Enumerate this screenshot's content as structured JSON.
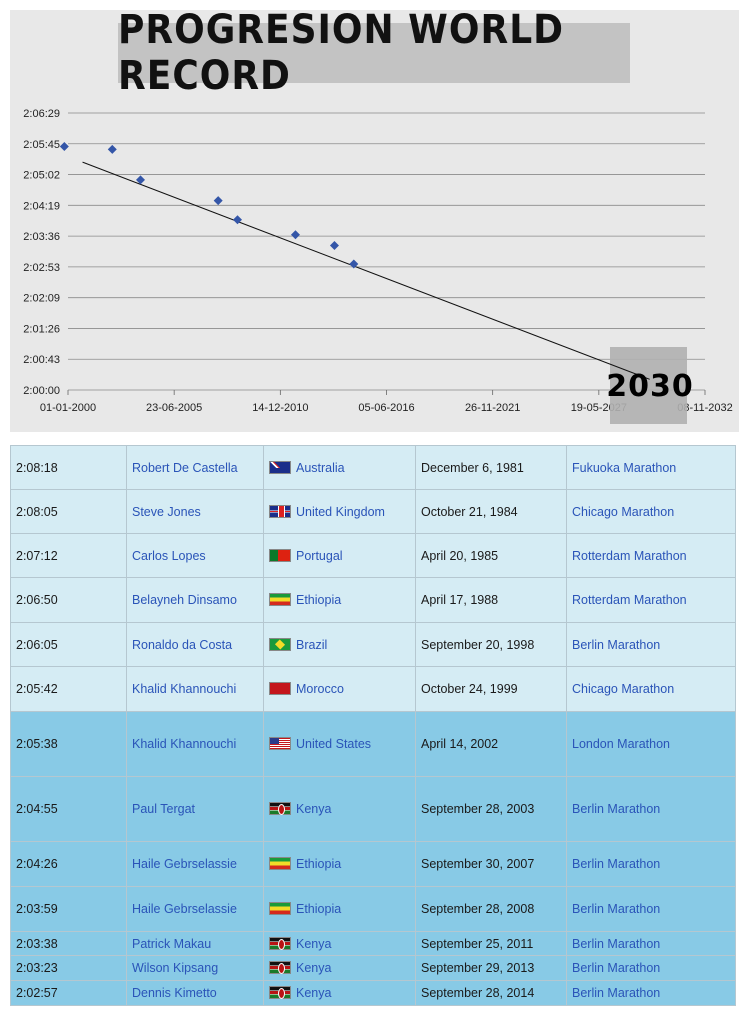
{
  "chart_data": {
    "type": "scatter",
    "title": "PROGRESION WORLD RECORD",
    "x_tick_labels": [
      "01-01-2000",
      "23-06-2005",
      "14-12-2010",
      "05-06-2016",
      "26-11-2021",
      "19-05-2027",
      "08-11-2032"
    ],
    "x_range": [
      "2000-01-01",
      "2032-11-08"
    ],
    "y_tick_labels": [
      "2:00:00",
      "2:00:43",
      "2:01:26",
      "2:02:09",
      "2:02:53",
      "2:03:36",
      "2:04:19",
      "2:05:02",
      "2:05:45",
      "2:06:29"
    ],
    "y_range": [
      "2:00:00",
      "2:06:29"
    ],
    "grid": true,
    "series": [
      {
        "points": [
          {
            "x": "1999-10-24",
            "y": "2:05:42"
          },
          {
            "x": "2002-04-14",
            "y": "2:05:38"
          },
          {
            "x": "2003-09-28",
            "y": "2:04:55"
          },
          {
            "x": "2007-09-30",
            "y": "2:04:26"
          },
          {
            "x": "2008-09-28",
            "y": "2:03:59"
          },
          {
            "x": "2011-09-25",
            "y": "2:03:38"
          },
          {
            "x": "2013-09-29",
            "y": "2:03:23"
          },
          {
            "x": "2014-09-28",
            "y": "2:02:57"
          }
        ],
        "color": "#3456a8"
      }
    ],
    "trendline": {
      "from": {
        "x": "2000-10-01",
        "y": "2:05:20"
      },
      "to": {
        "x": "2030-01-01",
        "y": "2:00:15"
      },
      "color": "#111111"
    },
    "annotation": {
      "text": "2030",
      "background": "#b0b0b0"
    }
  },
  "records": [
    {
      "time": "2:08:18",
      "name": "Robert De Castella",
      "flag": "australia",
      "country": "Australia",
      "date": "December 6, 1981",
      "event": "Fukuoka Marathon",
      "style": "a"
    },
    {
      "time": "2:08:05",
      "name": "Steve Jones",
      "flag": "uk",
      "country": "United Kingdom",
      "date": "October 21, 1984",
      "event": "Chicago Marathon",
      "style": "a"
    },
    {
      "time": "2:07:12",
      "name": "Carlos Lopes",
      "flag": "portugal",
      "country": "Portugal",
      "date": "April 20, 1985",
      "event": "Rotterdam Marathon",
      "style": "a"
    },
    {
      "time": "2:06:50",
      "name": "Belayneh Dinsamo",
      "flag": "ethiopia",
      "country": "Ethiopia",
      "date": "April 17, 1988",
      "event": "Rotterdam Marathon",
      "style": "a"
    },
    {
      "time": "2:06:05",
      "name": "Ronaldo da Costa",
      "flag": "brazil",
      "country": "Brazil",
      "date": "September 20, 1998",
      "event": "Berlin Marathon",
      "style": "a"
    },
    {
      "time": "2:05:42",
      "name": "Khalid Khannouchi",
      "flag": "morocco",
      "country": "Morocco",
      "date": "October 24, 1999",
      "event": "Chicago Marathon",
      "style": "a"
    },
    {
      "time": "2:05:38",
      "name": "Khalid Khannouchi",
      "flag": "us",
      "country": "United States",
      "date": "April 14, 2002",
      "event": "London Marathon",
      "style": "b"
    },
    {
      "time": "2:04:55",
      "name": "Paul Tergat",
      "flag": "kenya",
      "country": "Kenya",
      "date": "September 28, 2003",
      "event": "Berlin Marathon",
      "style": "b"
    },
    {
      "time": "2:04:26",
      "name": "Haile Gebrselassie",
      "flag": "ethiopia",
      "country": "Ethiopia",
      "date": "September 30, 2007",
      "event": "Berlin Marathon",
      "style": "b"
    },
    {
      "time": "2:03:59",
      "name": "Haile Gebrselassie",
      "flag": "ethiopia",
      "country": "Ethiopia",
      "date": "September 28, 2008",
      "event": "Berlin Marathon",
      "style": "b"
    },
    {
      "time": "2:03:38",
      "name": "Patrick Makau",
      "flag": "kenya",
      "country": "Kenya",
      "date": "September 25, 2011",
      "event": "Berlin Marathon",
      "style": "b"
    },
    {
      "time": "2:03:23",
      "name": "Wilson Kipsang",
      "flag": "kenya",
      "country": "Kenya",
      "date": "September 29, 2013",
      "event": "Berlin Marathon",
      "style": "b"
    },
    {
      "time": "2:02:57",
      "name": "Dennis Kimetto",
      "flag": "kenya",
      "country": "Kenya",
      "date": "September 28, 2014",
      "event": "Berlin Marathon",
      "style": "b"
    }
  ],
  "colors": {
    "row_a": "#d5ecf4",
    "row_b": "#88cae6",
    "link": "#2a54b8",
    "marker": "#3456a8"
  }
}
